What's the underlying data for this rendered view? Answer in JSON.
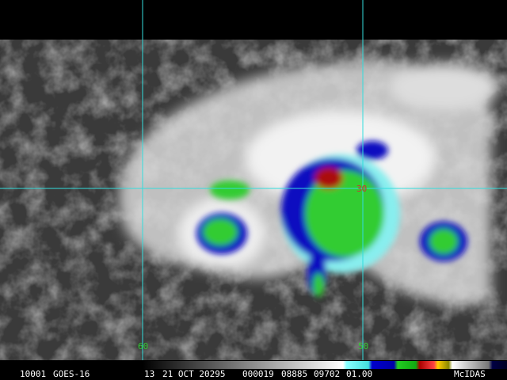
{
  "status_bar": {
    "id": "10001",
    "satellite": "GOES-16",
    "band": "13",
    "date": "21 OCT 20295",
    "time": "000019",
    "fields": [
      "08885",
      "09702",
      "01.00"
    ],
    "brand": "McIDAS"
  },
  "grid_labels": {
    "lon": [
      "60",
      "50"
    ],
    "lat": [
      "30"
    ]
  }
}
